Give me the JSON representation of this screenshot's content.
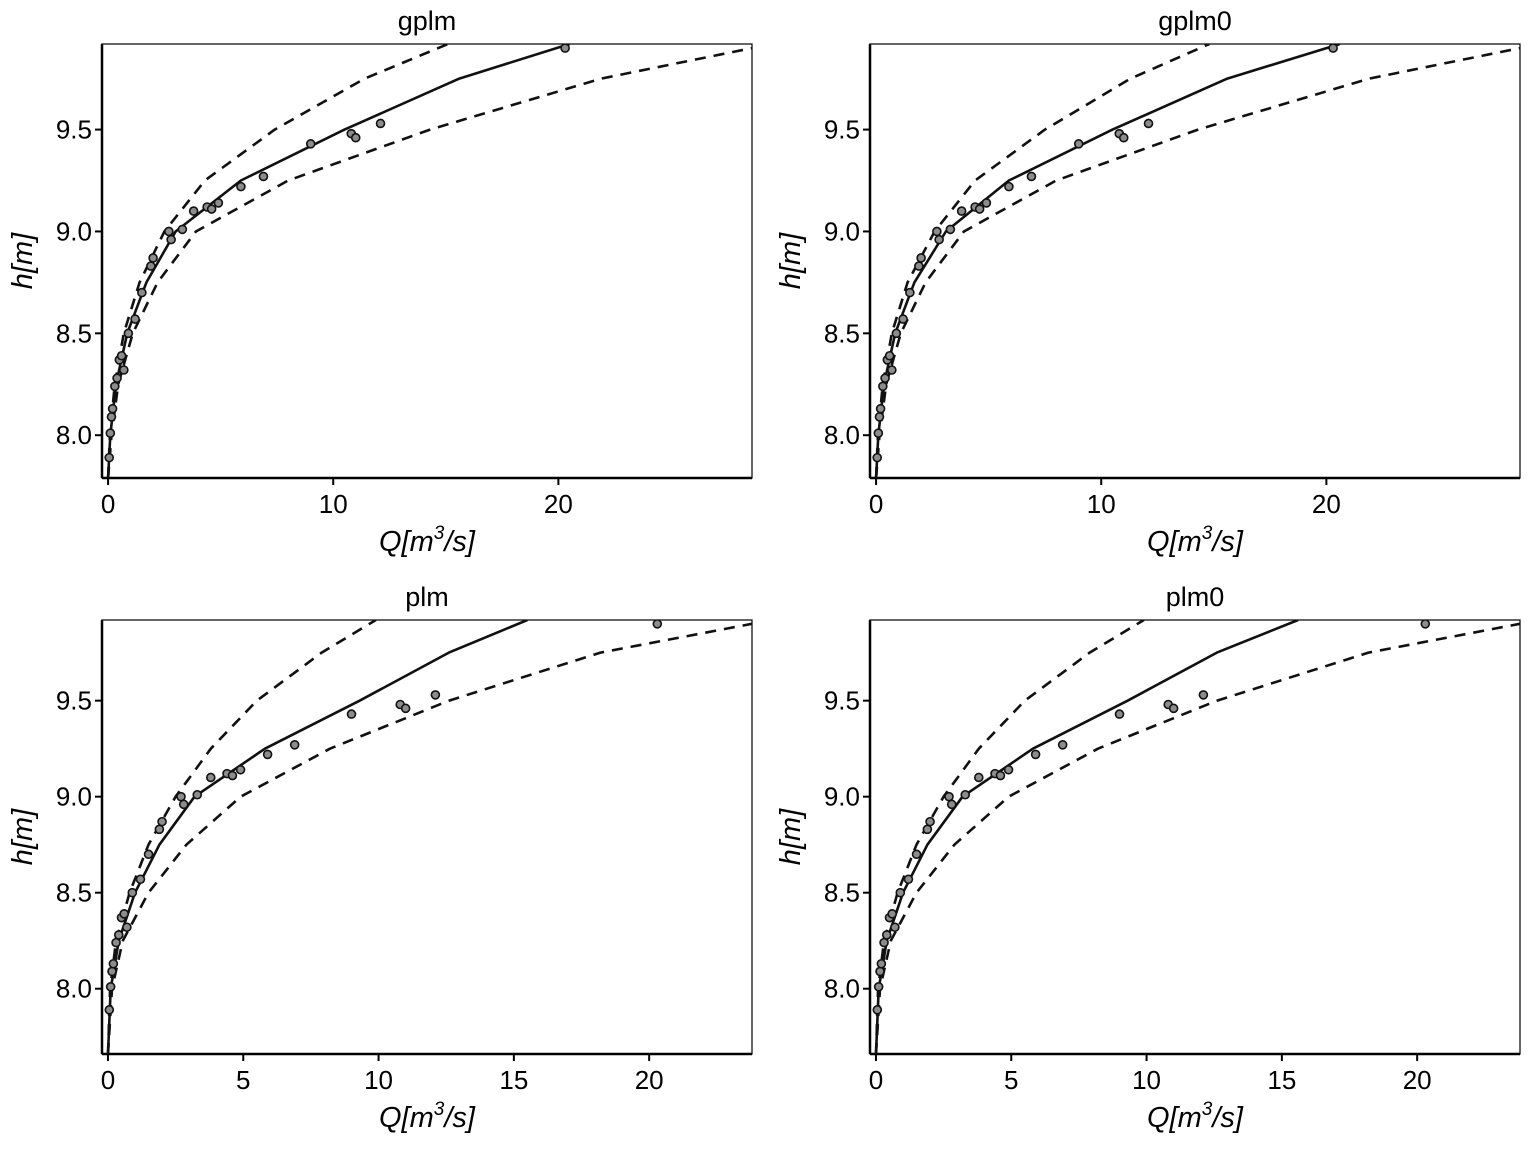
{
  "chart_data": [
    {
      "type": "scatter",
      "title": "gplm",
      "xlabel": "Q[m3/s]",
      "ylabel": "h[m]",
      "xlim": [
        -0.27,
        28.6
      ],
      "ylim": [
        7.79,
        9.92
      ],
      "xticks": [
        0,
        10,
        20
      ],
      "yticks": [
        8.0,
        8.5,
        9.0,
        9.5
      ],
      "ytick_labels": [
        "8.0",
        "8.5",
        "9.0",
        "9.5"
      ],
      "points": {
        "Q": [
          0.05,
          0.1,
          0.15,
          0.2,
          0.3,
          0.4,
          0.5,
          0.6,
          0.7,
          0.9,
          1.2,
          1.5,
          1.9,
          2.0,
          2.7,
          2.8,
          3.3,
          3.8,
          4.4,
          4.6,
          4.9,
          5.9,
          6.9,
          9.0,
          10.8,
          11.0,
          12.1,
          20.3
        ],
        "h": [
          7.89,
          8.01,
          8.09,
          8.13,
          8.24,
          8.28,
          8.37,
          8.39,
          8.32,
          8.5,
          8.57,
          8.7,
          8.83,
          8.87,
          9.0,
          8.96,
          9.01,
          9.1,
          9.12,
          9.11,
          9.14,
          9.22,
          9.27,
          9.43,
          9.48,
          9.46,
          9.53,
          9.9
        ]
      },
      "series": [
        {
          "name": "fit",
          "style": "solid",
          "h": [
            7.79,
            8.0,
            8.25,
            8.5,
            8.75,
            9.0,
            9.25,
            9.5,
            9.75,
            9.92
          ],
          "Q": [
            0,
            0.1,
            0.35,
            0.85,
            1.7,
            3.0,
            5.9,
            10.5,
            15.6,
            20.5
          ]
        },
        {
          "name": "upper",
          "style": "dashed",
          "h": [
            7.79,
            8.0,
            8.25,
            8.5,
            8.75,
            9.0,
            9.25,
            9.5,
            9.75,
            9.92
          ],
          "Q": [
            0,
            0.08,
            0.3,
            0.7,
            1.4,
            2.5,
            4.3,
            7.4,
            11.4,
            15.1
          ]
        },
        {
          "name": "lower",
          "style": "dashed",
          "h": [
            7.79,
            8.0,
            8.25,
            8.5,
            8.75,
            9.0,
            9.25,
            9.5,
            9.75,
            9.9
          ],
          "Q": [
            0,
            0.15,
            0.45,
            1.1,
            2.2,
            3.9,
            8.0,
            14.3,
            21.9,
            28.6
          ]
        }
      ]
    },
    {
      "type": "scatter",
      "title": "gplm0",
      "xlabel": "Q[m3/s]",
      "ylabel": "h[m]",
      "xlim": [
        -0.27,
        28.6
      ],
      "ylim": [
        7.79,
        9.92
      ],
      "xticks": [
        0,
        10,
        20
      ],
      "yticks": [
        8.0,
        8.5,
        9.0,
        9.5
      ],
      "ytick_labels": [
        "8.0",
        "8.5",
        "9.0",
        "9.5"
      ],
      "points": {
        "Q": [
          0.05,
          0.1,
          0.15,
          0.2,
          0.3,
          0.4,
          0.5,
          0.6,
          0.7,
          0.9,
          1.2,
          1.5,
          1.9,
          2.0,
          2.7,
          2.8,
          3.3,
          3.8,
          4.4,
          4.6,
          4.9,
          5.9,
          6.9,
          9.0,
          10.8,
          11.0,
          12.1,
          20.3
        ],
        "h": [
          7.89,
          8.01,
          8.09,
          8.13,
          8.24,
          8.28,
          8.37,
          8.39,
          8.32,
          8.5,
          8.57,
          8.7,
          8.83,
          8.87,
          9.0,
          8.96,
          9.01,
          9.1,
          9.12,
          9.11,
          9.14,
          9.22,
          9.27,
          9.43,
          9.48,
          9.46,
          9.53,
          9.9
        ]
      },
      "series": [
        {
          "name": "fit",
          "style": "solid",
          "h": [
            7.79,
            8.0,
            8.25,
            8.5,
            8.75,
            9.0,
            9.25,
            9.5,
            9.75,
            9.92
          ],
          "Q": [
            0,
            0.1,
            0.35,
            0.85,
            1.7,
            3.1,
            5.9,
            10.5,
            15.6,
            20.6
          ]
        },
        {
          "name": "upper",
          "style": "dashed",
          "h": [
            7.79,
            8.0,
            8.25,
            8.5,
            8.75,
            9.0,
            9.25,
            9.5,
            9.75,
            9.92
          ],
          "Q": [
            0,
            0.08,
            0.3,
            0.7,
            1.4,
            2.6,
            4.4,
            7.5,
            11.3,
            14.8
          ]
        },
        {
          "name": "lower",
          "style": "dashed",
          "h": [
            7.79,
            8.0,
            8.25,
            8.5,
            8.75,
            9.0,
            9.25,
            9.5,
            9.75,
            9.9
          ],
          "Q": [
            0,
            0.15,
            0.45,
            1.1,
            2.2,
            3.9,
            8.0,
            14.3,
            21.9,
            28.6
          ]
        }
      ]
    },
    {
      "type": "scatter",
      "title": "plm",
      "xlabel": "Q[m3/s]",
      "ylabel": "h[m]",
      "xlim": [
        -0.22,
        23.8
      ],
      "ylim": [
        7.66,
        9.92
      ],
      "xticks": [
        0,
        5,
        10,
        15,
        20
      ],
      "yticks": [
        8.0,
        8.5,
        9.0,
        9.5
      ],
      "ytick_labels": [
        "8.0",
        "8.5",
        "9.0",
        "9.5"
      ],
      "points": {
        "Q": [
          0.05,
          0.1,
          0.15,
          0.2,
          0.3,
          0.4,
          0.5,
          0.6,
          0.7,
          0.9,
          1.2,
          1.5,
          1.9,
          2.0,
          2.7,
          2.8,
          3.3,
          3.8,
          4.4,
          4.6,
          4.9,
          5.9,
          6.9,
          9.0,
          10.8,
          11.0,
          12.1,
          20.3
        ],
        "h": [
          7.89,
          8.01,
          8.09,
          8.13,
          8.24,
          8.28,
          8.37,
          8.39,
          8.32,
          8.5,
          8.57,
          8.7,
          8.83,
          8.87,
          9.0,
          8.96,
          9.01,
          9.1,
          9.12,
          9.11,
          9.14,
          9.22,
          9.27,
          9.43,
          9.48,
          9.46,
          9.53,
          9.9
        ]
      },
      "series": [
        {
          "name": "fit",
          "style": "solid",
          "h": [
            7.66,
            8.0,
            8.25,
            8.5,
            8.75,
            9.0,
            9.25,
            9.5,
            9.75,
            9.92
          ],
          "Q": [
            0,
            0.1,
            0.4,
            1.0,
            1.9,
            3.2,
            5.8,
            9.3,
            12.6,
            15.5
          ]
        },
        {
          "name": "upper",
          "style": "dashed",
          "h": [
            7.66,
            8.0,
            8.25,
            8.5,
            8.75,
            9.0,
            9.25,
            9.5,
            9.75,
            9.92
          ],
          "Q": [
            0,
            0.08,
            0.3,
            0.8,
            1.5,
            2.5,
            3.8,
            5.5,
            7.9,
            9.9
          ]
        },
        {
          "name": "lower",
          "style": "dashed",
          "h": [
            7.66,
            8.0,
            8.25,
            8.5,
            8.75,
            9.0,
            9.25,
            9.5,
            9.75,
            9.9
          ],
          "Q": [
            0,
            0.15,
            0.55,
            1.5,
            2.9,
            4.9,
            8.2,
            12.6,
            18.2,
            23.8
          ]
        }
      ]
    },
    {
      "type": "scatter",
      "title": "plm0",
      "xlabel": "Q[m3/s]",
      "ylabel": "h[m]",
      "xlim": [
        -0.22,
        23.8
      ],
      "ylim": [
        7.66,
        9.92
      ],
      "xticks": [
        0,
        5,
        10,
        15,
        20
      ],
      "yticks": [
        8.0,
        8.5,
        9.0,
        9.5
      ],
      "ytick_labels": [
        "8.0",
        "8.5",
        "9.0",
        "9.5"
      ],
      "points": {
        "Q": [
          0.05,
          0.1,
          0.15,
          0.2,
          0.3,
          0.4,
          0.5,
          0.6,
          0.7,
          0.9,
          1.2,
          1.5,
          1.9,
          2.0,
          2.7,
          2.8,
          3.3,
          3.8,
          4.4,
          4.6,
          4.9,
          5.9,
          6.9,
          9.0,
          10.8,
          11.0,
          12.1,
          20.3
        ],
        "h": [
          7.89,
          8.01,
          8.09,
          8.13,
          8.24,
          8.28,
          8.37,
          8.39,
          8.32,
          8.5,
          8.57,
          8.7,
          8.83,
          8.87,
          9.0,
          8.96,
          9.01,
          9.1,
          9.12,
          9.11,
          9.14,
          9.22,
          9.27,
          9.43,
          9.48,
          9.46,
          9.53,
          9.9
        ]
      },
      "series": [
        {
          "name": "fit",
          "style": "solid",
          "h": [
            7.66,
            8.0,
            8.25,
            8.5,
            8.75,
            9.0,
            9.25,
            9.5,
            9.75,
            9.92
          ],
          "Q": [
            0,
            0.1,
            0.4,
            1.0,
            1.9,
            3.2,
            5.8,
            9.3,
            12.6,
            15.6
          ]
        },
        {
          "name": "upper",
          "style": "dashed",
          "h": [
            7.66,
            8.0,
            8.25,
            8.5,
            8.75,
            9.0,
            9.25,
            9.5,
            9.75,
            9.92
          ],
          "Q": [
            0,
            0.08,
            0.3,
            0.8,
            1.5,
            2.5,
            3.8,
            5.5,
            7.9,
            9.9
          ]
        },
        {
          "name": "lower",
          "style": "dashed",
          "h": [
            7.66,
            8.0,
            8.25,
            8.5,
            8.75,
            9.0,
            9.25,
            9.5,
            9.75,
            9.9
          ],
          "Q": [
            0,
            0.15,
            0.55,
            1.5,
            2.9,
            4.9,
            8.2,
            12.6,
            18.2,
            23.8
          ]
        }
      ]
    }
  ],
  "labels": {
    "xlabel_main": "Q[m",
    "xlabel_sup": "3",
    "xlabel_tail": "/s]",
    "ylabel": "h[m]"
  }
}
